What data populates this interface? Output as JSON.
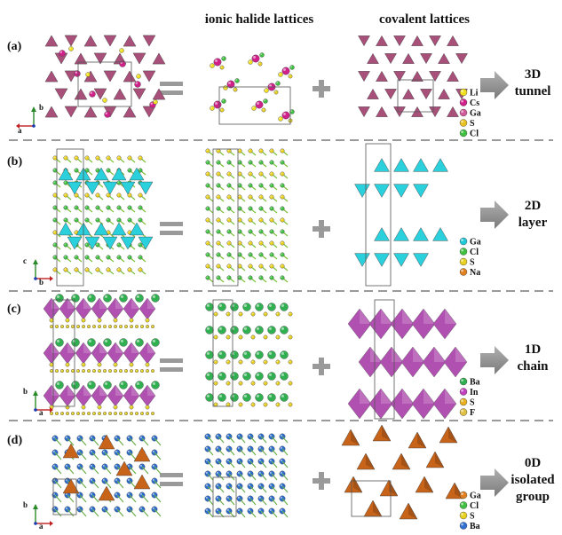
{
  "headers": {
    "ionic": "ionic halide lattices",
    "covalent": "covalent lattices"
  },
  "rows": [
    {
      "label": "(a)",
      "axes": [
        "b",
        "a"
      ],
      "result": [
        "3D",
        "tunnel"
      ],
      "legend": [
        {
          "name": "Li",
          "color": "#f0e020"
        },
        {
          "name": "Cs",
          "color": "#d0208a"
        },
        {
          "name": "Ga",
          "color": "#d05a9a"
        },
        {
          "name": "S",
          "color": "#e8c020"
        },
        {
          "name": "Cl",
          "color": "#40c040"
        }
      ]
    },
    {
      "label": "(b)",
      "axes": [
        "c",
        "b"
      ],
      "result": [
        "2D",
        "layer"
      ],
      "legend": [
        {
          "name": "Ga",
          "color": "#20c8d8"
        },
        {
          "name": "Cl",
          "color": "#40c040"
        },
        {
          "name": "S",
          "color": "#e8d020"
        },
        {
          "name": "Na",
          "color": "#e08020"
        }
      ]
    },
    {
      "label": "(c)",
      "axes": [
        "b",
        "a"
      ],
      "result": [
        "1D",
        "chain"
      ],
      "legend": [
        {
          "name": "Ba",
          "color": "#30b050"
        },
        {
          "name": "In",
          "color": "#c040c0"
        },
        {
          "name": "S",
          "color": "#e8b020"
        },
        {
          "name": "F",
          "color": "#e0c040"
        }
      ]
    },
    {
      "label": "(d)",
      "axes": [
        "b",
        "a"
      ],
      "result": [
        "0D",
        "isolated",
        "group"
      ],
      "legend": [
        {
          "name": "Ga",
          "color": "#e08020"
        },
        {
          "name": "Cl",
          "color": "#40c040"
        },
        {
          "name": "S",
          "color": "#e8d020"
        },
        {
          "name": "Ba",
          "color": "#3070d0"
        }
      ]
    }
  ],
  "colors": {
    "li": "#f0e020",
    "cs": "#d0208a",
    "ga_tet_a": "#a8507a",
    "ga_tet_b": "#2ad0dc",
    "cl": "#40c040",
    "s": "#e8d020",
    "in_oct": "#b050b0",
    "ba": "#30b050",
    "ga_tet_d": "#c8641a",
    "ba_d": "#2a6cd0",
    "arrow": "#8a8a8a",
    "equals": "#9a9a9a",
    "plus": "#9a9a9a",
    "divider": "#9a9a9a"
  }
}
